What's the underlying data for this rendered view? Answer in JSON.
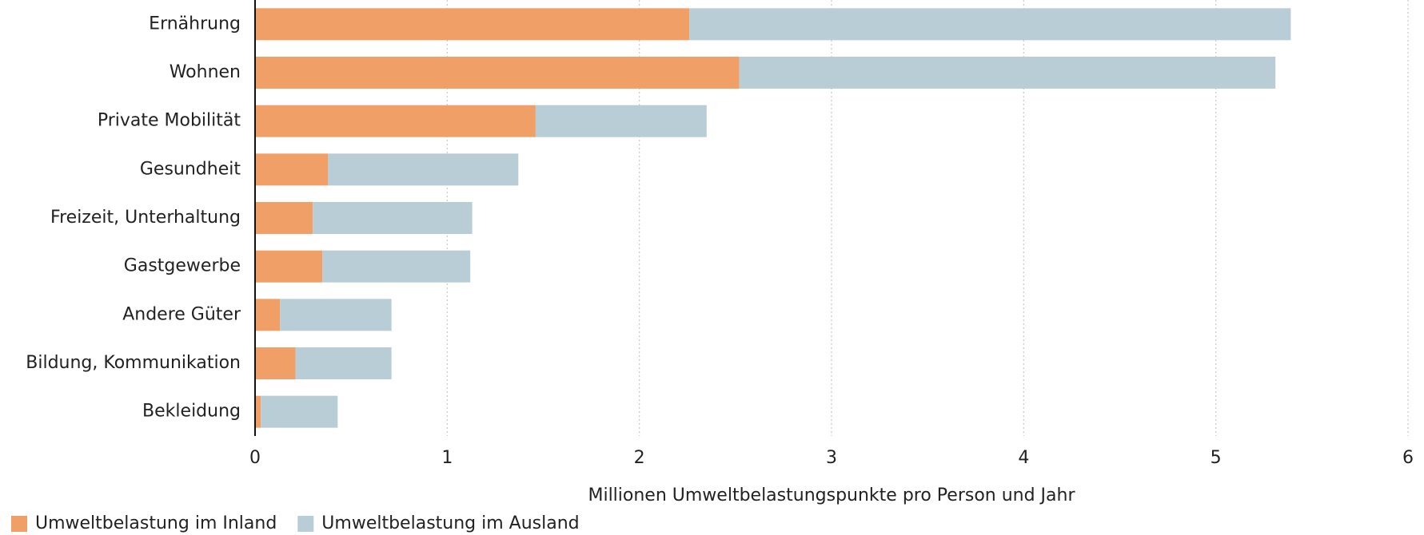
{
  "chart_data": {
    "type": "stacked_barh",
    "x_label": "Millionen Umweltbelastungspunkte pro Person und Jahr",
    "categories": [
      "Ernährung",
      "Wohnen",
      "Private Mobilität",
      "Gesundheit",
      "Freizeit, Unterhaltung",
      "Gastgewerbe",
      "Andere Güter",
      "Bildung, Kommunikation",
      "Bekleidung"
    ],
    "series": [
      {
        "name": "Umweltbelastung im Inland",
        "color": "#f0a066",
        "values": [
          2.26,
          2.52,
          1.46,
          0.38,
          0.3,
          0.35,
          0.13,
          0.21,
          0.03
        ]
      },
      {
        "name": "Umweltbelastung im Ausland",
        "color": "#b8cdd6",
        "values": [
          3.13,
          2.79,
          0.89,
          0.99,
          0.83,
          0.77,
          0.58,
          0.5,
          0.4
        ]
      }
    ],
    "xlim": [
      0,
      6
    ],
    "xticks": [
      0,
      1,
      2,
      3,
      4,
      5,
      6
    ],
    "grid": true,
    "legend": "bottom-left"
  }
}
